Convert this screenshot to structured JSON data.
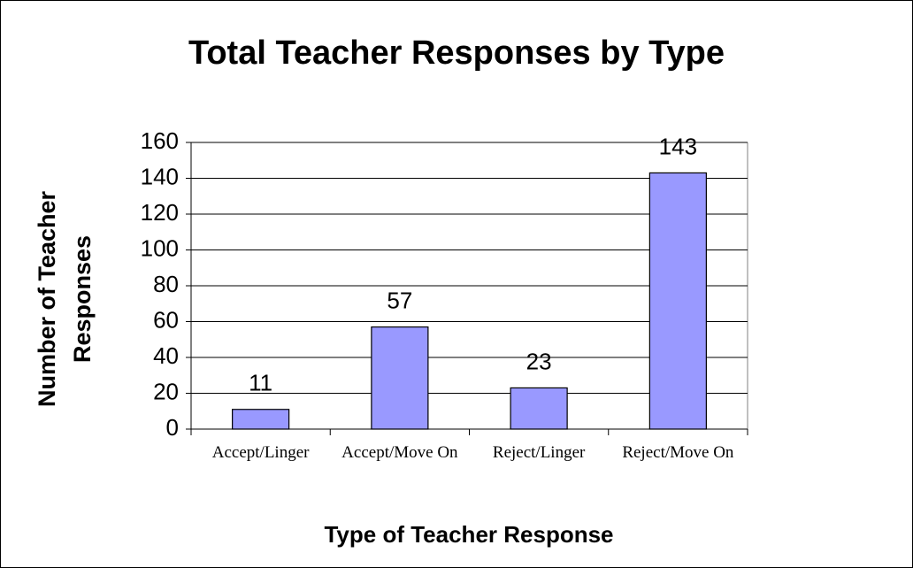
{
  "chart_data": {
    "type": "bar",
    "title": "Total Teacher Responses by Type",
    "x_label": "Type of Teacher Response",
    "y_label": "Number of Teacher Responses",
    "categories": [
      "Accept/Linger",
      "Accept/Move On",
      "Reject/Linger",
      "Reject/Move On"
    ],
    "values": [
      11,
      57,
      23,
      143
    ],
    "color": "#9999ff",
    "ylim": [
      0,
      160
    ],
    "yticks": [
      0,
      20,
      40,
      60,
      80,
      100,
      120,
      140,
      160
    ],
    "grid": true
  }
}
